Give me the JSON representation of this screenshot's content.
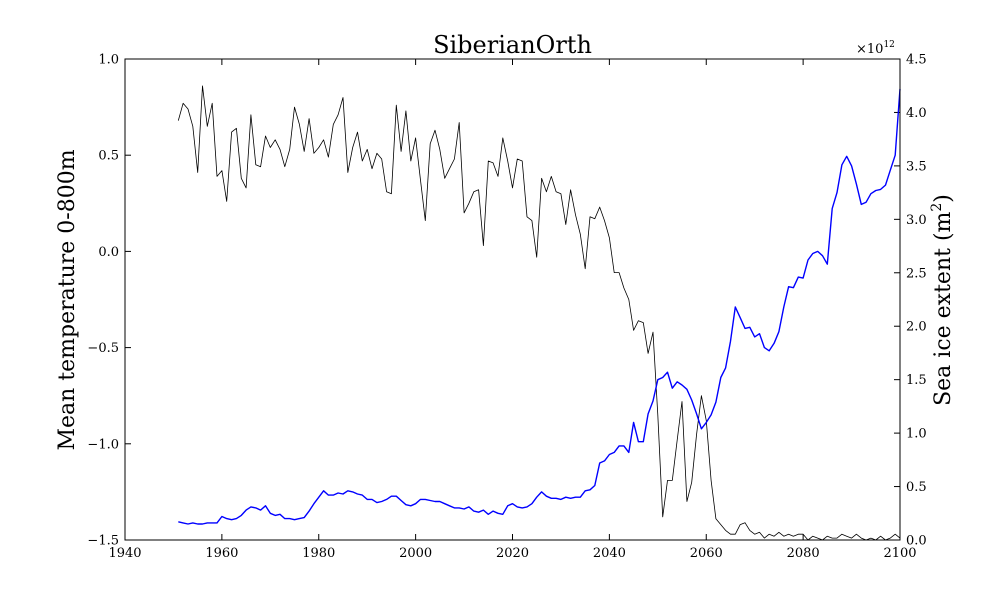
{
  "chart_data": {
    "type": "line",
    "title": "SiberianOrth",
    "xlabel": "",
    "ylabel": "Mean temperature 0-800m",
    "y2label_main": "Sea ice extent (m",
    "y2label_sup": "2",
    "y2label_close": ")",
    "y2_offset_text": "×10",
    "y2_offset_exp": "12",
    "xlim": [
      1940,
      2100
    ],
    "ylim": [
      -1.5,
      1.0
    ],
    "y2lim": [
      0,
      4.5
    ],
    "x_ticks": [
      1940,
      1960,
      1980,
      2000,
      2020,
      2040,
      2060,
      2080,
      2100
    ],
    "x_tick_labels": [
      "1940",
      "1960",
      "1980",
      "2000",
      "2020",
      "2040",
      "2060",
      "2080",
      "2100"
    ],
    "y_ticks": [
      1.0,
      0.5,
      0.0,
      -0.5,
      -1.0,
      -1.5
    ],
    "y_tick_labels": [
      "1.0",
      "0.5",
      "0.0",
      "−0.5",
      "−1.0",
      "−1.5"
    ],
    "y2_ticks": [
      4.5,
      4.0,
      3.5,
      3.0,
      2.5,
      2.0,
      1.5,
      1.0,
      0.5,
      0.0
    ],
    "y2_tick_labels": [
      "4.5",
      "4.0",
      "3.5",
      "3.0",
      "2.5",
      "2.0",
      "1.5",
      "1.0",
      "0.5",
      "0.0"
    ],
    "grid": false,
    "legend": "none",
    "series": [
      {
        "axis": "left",
        "color": "#000000",
        "x": [
          1951,
          1952,
          1953,
          1954,
          1955,
          1956,
          1957,
          1958,
          1959,
          1960,
          1961,
          1962,
          1963,
          1964,
          1965,
          1966,
          1967,
          1968,
          1969,
          1970,
          1971,
          1972,
          1973,
          1974,
          1975,
          1976,
          1977,
          1978,
          1979,
          1980,
          1981,
          1982,
          1983,
          1984,
          1985,
          1986,
          1987,
          1988,
          1989,
          1990,
          1991,
          1992,
          1993,
          1994,
          1995,
          1996,
          1997,
          1998,
          1999,
          2000,
          2001,
          2002,
          2003,
          2004,
          2005,
          2006,
          2007,
          2008,
          2009,
          2010,
          2011,
          2012,
          2013,
          2014,
          2015,
          2016,
          2017,
          2018,
          2019,
          2020,
          2021,
          2022,
          2023,
          2024,
          2025,
          2026,
          2027,
          2028,
          2029,
          2030,
          2031,
          2032,
          2033,
          2034,
          2035,
          2036,
          2037,
          2038,
          2039,
          2040,
          2041,
          2042,
          2043,
          2044,
          2045,
          2046,
          2047,
          2048,
          2049,
          2050,
          2051,
          2052,
          2053,
          2054,
          2055,
          2056,
          2057,
          2058,
          2059,
          2060,
          2061,
          2062,
          2063,
          2064,
          2065,
          2066,
          2067,
          2068,
          2069,
          2070,
          2071,
          2072,
          2073,
          2074,
          2075,
          2076,
          2077,
          2078,
          2079,
          2080,
          2081,
          2082,
          2083,
          2084,
          2085,
          2086,
          2087,
          2088,
          2089,
          2090,
          2091,
          2092,
          2093,
          2094,
          2095,
          2096,
          2097,
          2098,
          2099,
          2100
        ],
        "y": [
          0.68,
          0.77,
          0.74,
          0.65,
          0.41,
          0.86,
          0.65,
          0.77,
          0.39,
          0.42,
          0.26,
          0.62,
          0.64,
          0.38,
          0.33,
          0.71,
          0.45,
          0.44,
          0.6,
          0.54,
          0.58,
          0.53,
          0.44,
          0.53,
          0.75,
          0.66,
          0.52,
          0.69,
          0.51,
          0.54,
          0.58,
          0.49,
          0.66,
          0.71,
          0.8,
          0.41,
          0.54,
          0.62,
          0.47,
          0.53,
          0.43,
          0.51,
          0.48,
          0.31,
          0.3,
          0.76,
          0.52,
          0.73,
          0.47,
          0.59,
          0.37,
          0.16,
          0.56,
          0.63,
          0.53,
          0.38,
          0.43,
          0.48,
          0.67,
          0.2,
          0.25,
          0.31,
          0.32,
          0.03,
          0.47,
          0.46,
          0.39,
          0.59,
          0.47,
          0.33,
          0.48,
          0.47,
          0.18,
          0.16,
          -0.03,
          0.38,
          0.31,
          0.39,
          0.31,
          0.3,
          0.14,
          0.32,
          0.19,
          0.09,
          -0.09,
          0.18,
          0.17,
          0.23,
          0.16,
          0.07,
          -0.11,
          -0.11,
          -0.19,
          -0.25,
          -0.41,
          -0.36,
          -0.37,
          -0.53,
          -0.42,
          -0.85,
          -1.38,
          -1.19,
          -1.19,
          -0.98,
          -0.78,
          -1.3,
          -1.2,
          -0.95,
          -0.75,
          -0.88,
          -1.19,
          -1.39,
          -1.42,
          -1.45,
          -1.47,
          -1.47,
          -1.42,
          -1.41,
          -1.45,
          -1.47,
          -1.46,
          -1.49,
          -1.47,
          -1.48,
          -1.46,
          -1.48,
          -1.47,
          -1.48,
          -1.47,
          -1.47,
          -1.5,
          -1.48,
          -1.49,
          -1.5,
          -1.48,
          -1.49,
          -1.49,
          -1.47,
          -1.48,
          -1.49,
          -1.47,
          -1.49,
          -1.5,
          -1.49,
          -1.5,
          -1.48,
          -1.5,
          -1.49,
          -1.47,
          -1.49
        ]
      },
      {
        "axis": "right",
        "color": "#0000ff",
        "x": [
          1951,
          1952,
          1953,
          1954,
          1955,
          1956,
          1957,
          1958,
          1959,
          1960,
          1961,
          1962,
          1963,
          1964,
          1965,
          1966,
          1967,
          1968,
          1969,
          1970,
          1971,
          1972,
          1973,
          1974,
          1975,
          1976,
          1977,
          1978,
          1979,
          1980,
          1981,
          1982,
          1983,
          1984,
          1985,
          1986,
          1987,
          1988,
          1989,
          1990,
          1991,
          1992,
          1993,
          1994,
          1995,
          1996,
          1997,
          1998,
          1999,
          2000,
          2001,
          2002,
          2003,
          2004,
          2005,
          2006,
          2007,
          2008,
          2009,
          2010,
          2011,
          2012,
          2013,
          2014,
          2015,
          2016,
          2017,
          2018,
          2019,
          2020,
          2021,
          2022,
          2023,
          2024,
          2025,
          2026,
          2027,
          2028,
          2029,
          2030,
          2031,
          2032,
          2033,
          2034,
          2035,
          2036,
          2037,
          2038,
          2039,
          2040,
          2041,
          2042,
          2043,
          2044,
          2045,
          2046,
          2047,
          2048,
          2049,
          2050,
          2051,
          2052,
          2053,
          2054,
          2055,
          2056,
          2057,
          2058,
          2059,
          2060,
          2061,
          2062,
          2063,
          2064,
          2065,
          2066,
          2067,
          2068,
          2069,
          2070,
          2071,
          2072,
          2073,
          2074,
          2075,
          2076,
          2077,
          2078,
          2079,
          2080,
          2081,
          2082,
          2083,
          2084,
          2085,
          2086,
          2087,
          2088,
          2089,
          2090,
          2091,
          2092,
          2093,
          2094,
          2095,
          2096,
          2097,
          2098,
          2099,
          2100
        ],
        "y": [
          0.17,
          0.16,
          0.15,
          0.16,
          0.15,
          0.15,
          0.16,
          0.16,
          0.16,
          0.22,
          0.2,
          0.19,
          0.2,
          0.23,
          0.28,
          0.31,
          0.3,
          0.28,
          0.32,
          0.25,
          0.23,
          0.24,
          0.2,
          0.2,
          0.19,
          0.2,
          0.21,
          0.27,
          0.34,
          0.4,
          0.46,
          0.42,
          0.42,
          0.44,
          0.43,
          0.46,
          0.45,
          0.43,
          0.42,
          0.38,
          0.38,
          0.35,
          0.36,
          0.38,
          0.41,
          0.41,
          0.37,
          0.33,
          0.32,
          0.34,
          0.38,
          0.38,
          0.37,
          0.36,
          0.36,
          0.34,
          0.32,
          0.3,
          0.3,
          0.29,
          0.31,
          0.27,
          0.26,
          0.28,
          0.24,
          0.27,
          0.25,
          0.24,
          0.32,
          0.34,
          0.31,
          0.3,
          0.31,
          0.34,
          0.4,
          0.45,
          0.41,
          0.39,
          0.39,
          0.38,
          0.4,
          0.39,
          0.4,
          0.4,
          0.46,
          0.47,
          0.51,
          0.72,
          0.74,
          0.8,
          0.82,
          0.88,
          0.88,
          0.82,
          1.1,
          0.92,
          0.92,
          1.18,
          1.3,
          1.5,
          1.52,
          1.57,
          1.42,
          1.48,
          1.45,
          1.41,
          1.31,
          1.18,
          1.04,
          1.1,
          1.17,
          1.29,
          1.52,
          1.61,
          1.86,
          2.18,
          2.08,
          1.98,
          1.99,
          1.9,
          1.93,
          1.8,
          1.77,
          1.84,
          1.95,
          2.18,
          2.37,
          2.36,
          2.46,
          2.45,
          2.62,
          2.68,
          2.7,
          2.66,
          2.58,
          3.1,
          3.25,
          3.51,
          3.59,
          3.5,
          3.33,
          3.14,
          3.16,
          3.24,
          3.27,
          3.28,
          3.32,
          3.46,
          3.6,
          4.22
        ]
      }
    ]
  }
}
